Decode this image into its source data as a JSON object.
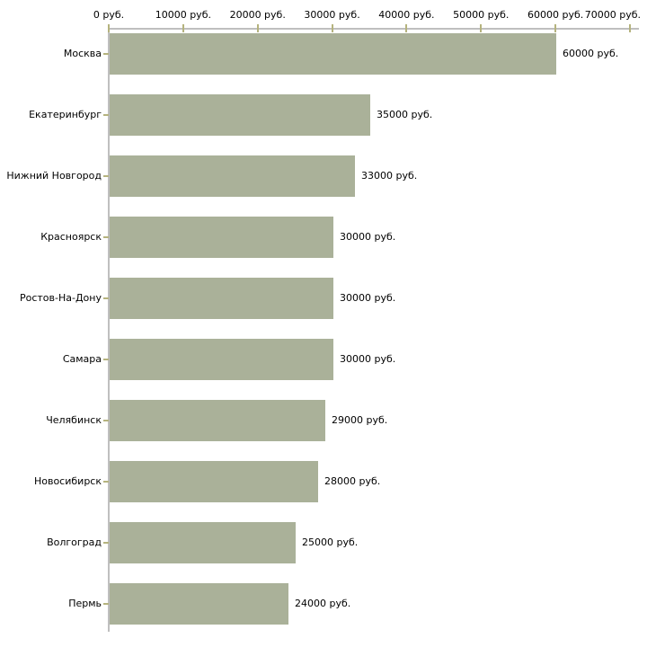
{
  "chart_data": {
    "type": "bar",
    "orientation": "horizontal",
    "title": "",
    "xlabel": "",
    "ylabel": "",
    "unit": "руб.",
    "grid": false,
    "legend": false,
    "xlim": [
      0,
      70000
    ],
    "categories": [
      "Москва",
      "Екатеринбург",
      "Нижний Новгород",
      "Красноярск",
      "Ростов-На-Дону",
      "Самара",
      "Челябинск",
      "Новосибирск",
      "Волгоград",
      "Пермь"
    ],
    "values": [
      60000,
      35000,
      33000,
      30000,
      30000,
      30000,
      29000,
      28000,
      25000,
      24000
    ],
    "value_labels": [
      "60000 руб.",
      "35000 руб.",
      "33000 руб.",
      "30000 руб.",
      "30000 руб.",
      "30000 руб.",
      "29000 руб.",
      "28000 руб.",
      "25000 руб.",
      "24000 руб."
    ],
    "x_ticks": [
      {
        "value": 0,
        "label": "0 руб."
      },
      {
        "value": 10000,
        "label": "10000 руб."
      },
      {
        "value": 20000,
        "label": "20000 руб."
      },
      {
        "value": 30000,
        "label": "30000 руб."
      },
      {
        "value": 40000,
        "label": "40000 руб."
      },
      {
        "value": 50000,
        "label": "50000 руб."
      },
      {
        "value": 60000,
        "label": "60000 руб."
      },
      {
        "value": 70000,
        "label": "70000 руб."
      }
    ],
    "colors": {
      "bar": "#aab199",
      "axis": "#bfbfbf",
      "tick": "#b5b37e",
      "text": "#000000",
      "background": "#ffffff"
    }
  }
}
